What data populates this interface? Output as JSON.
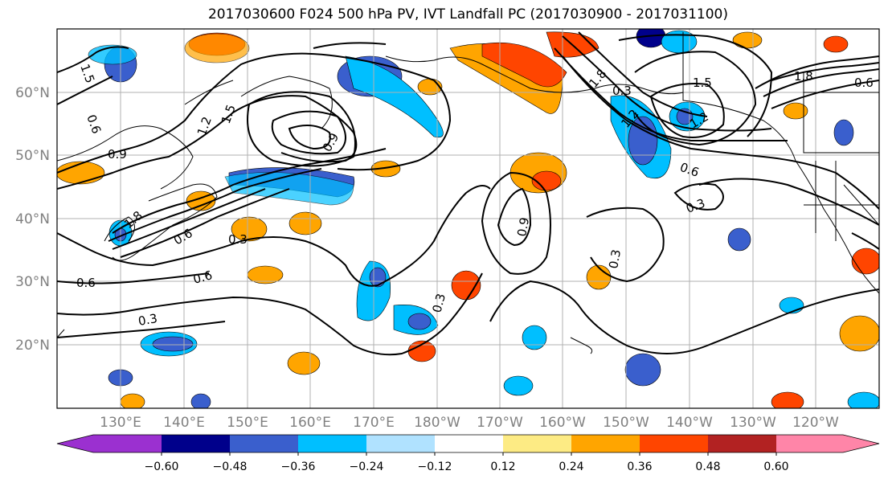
{
  "figure": {
    "title": "2017030600 F024 500 hPa PV, IVT Landfall PC (2017030900 - 2017031100)",
    "lon_tick_labels": [
      "130°E",
      "140°E",
      "150°E",
      "160°E",
      "170°E",
      "180°W",
      "170°W",
      "160°W",
      "150°W",
      "140°W",
      "130°W",
      "120°W"
    ],
    "lat_tick_labels": [
      "20°N",
      "30°N",
      "40°N",
      "50°N",
      "60°N"
    ],
    "colorbar_tick_labels": [
      "−0.60",
      "−0.48",
      "−0.36",
      "−0.24",
      "−0.12",
      "0.12",
      "0.24",
      "0.36",
      "0.48",
      "0.60"
    ],
    "colorbar_colors": [
      "#9b30d0",
      "#00008b",
      "#3a5fcd",
      "#00bfff",
      "#b0e2ff",
      "#ffffff",
      "#fdeb84",
      "#ffa500",
      "#ff4500",
      "#b22222",
      "#ff85a8"
    ],
    "contour_labels": [
      "1.5",
      "0.6",
      "0.9",
      "1.2",
      "1.5",
      "0.9",
      "1.8",
      "0.6",
      "0.3",
      "0.6",
      "0.3",
      "0.3",
      "0.6",
      "0.9",
      "0.3",
      "0.3",
      "1.8",
      "1.2",
      "0.6",
      "0.3",
      "1.5",
      "1.2",
      "1.8",
      "0.6"
    ],
    "colors": {
      "line": "#000000",
      "grid": "#b0b0b0",
      "tick_label": "#808080"
    }
  }
}
